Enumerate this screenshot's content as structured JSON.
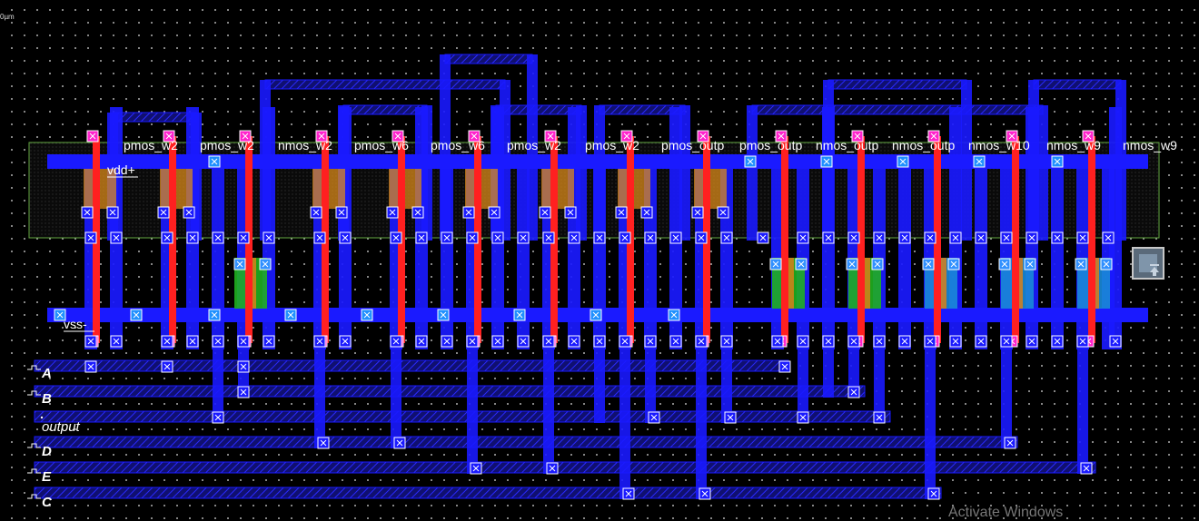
{
  "canvas": {
    "scale_label": "0µm",
    "rails": {
      "vdd": "vdd+",
      "vss": "vss-"
    },
    "cells": [
      "pmos_w2",
      "pmos_w2",
      "nmos_w2",
      "pmos_w6",
      "pmos_w6",
      "pmos_w2",
      "pmos_w2",
      "pmos_outp",
      "pmos_outp",
      "nmos_outp",
      "nmos_outp",
      "nmos_w10",
      "nmos_w9",
      "nmos_w9"
    ],
    "pins": [
      {
        "name": "A",
        "kind": "input"
      },
      {
        "name": "B",
        "kind": "input"
      },
      {
        "name": "output",
        "kind": "output"
      },
      {
        "name": "D",
        "kind": "input"
      },
      {
        "name": "E",
        "kind": "input"
      },
      {
        "name": "C",
        "kind": "input"
      }
    ],
    "colors": {
      "metal1": "#1a1aff",
      "poly": "#ff2020",
      "contact": "#ff22cc",
      "pdiff": "#d98a1a",
      "ndiff": "#20b020",
      "nwell_outline": "#66aa44",
      "via": "#2080ff"
    }
  },
  "zoom_button": {
    "icon": "zoom-fit-icon"
  },
  "overlay": {
    "watermark": "Activate Windows"
  }
}
